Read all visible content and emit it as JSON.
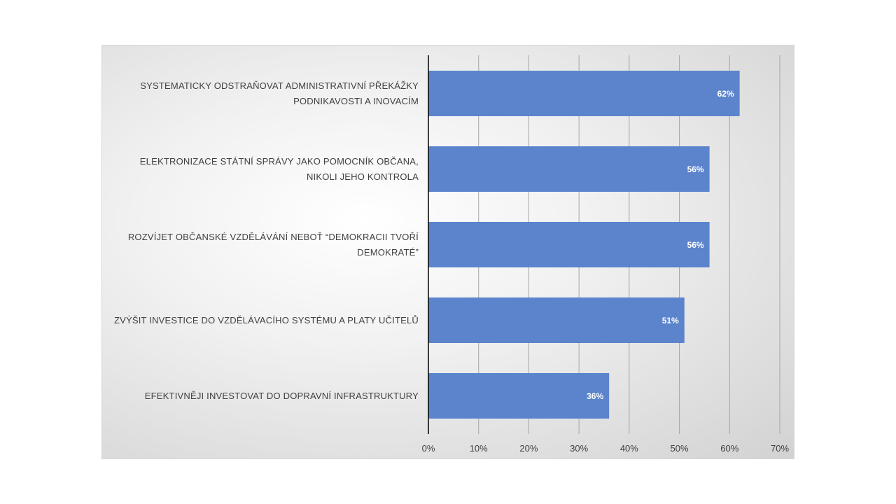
{
  "chart_data": {
    "type": "bar",
    "orientation": "horizontal",
    "categories": [
      "SYSTEMATICKY ODSTRAŇOVAT ADMINISTRATIVNÍ PŘEKÁŽKY PODNIKAVOSTI A INOVACÍM",
      "ELEKTRONIZACE STÁTNÍ SPRÁVY JAKO POMOCNÍK OBČANA, NIKOLI JEHO KONTROLA",
      "ROZVÍJET OBČANSKÉ VZDĚLÁVÁNÍ NEBOŤ “DEMOKRACII TVOŘÍ DEMOKRATÉ”",
      "ZVÝŠIT INVESTICE DO VZDĚLÁVACÍHO SYSTÉMU A PLATY UČITELŮ",
      "EFEKTIVNĚJI INVESTOVAT DO DOPRAVNÍ INFRASTRUKTURY"
    ],
    "values": [
      62,
      56,
      56,
      51,
      36
    ],
    "data_labels": [
      "62%",
      "56%",
      "56%",
      "51%",
      "36%"
    ],
    "xlim": [
      0,
      70
    ],
    "x_ticks": [
      "0%",
      "10%",
      "20%",
      "30%",
      "40%",
      "50%",
      "60%",
      "70%"
    ],
    "grid": true,
    "legend": "none",
    "bar_color": "#5b84cc",
    "gridline_color": "#a6a6a6",
    "axis_color": "#000000"
  }
}
